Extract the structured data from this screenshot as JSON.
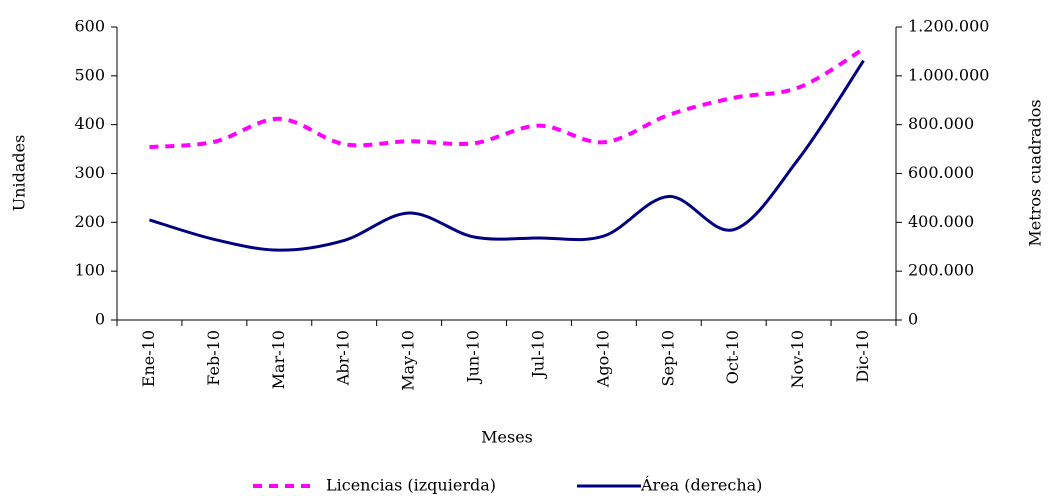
{
  "chart_data": {
    "type": "line",
    "x_label": "Meses",
    "y_label": "Unidades",
    "y2_label": "Metros cuadrados",
    "categories": [
      "Ene-10",
      "Feb-10",
      "Mar-10",
      "Abr-10",
      "May-10",
      "Jun-10",
      "Jul-10",
      "Ago-10",
      "Sep-10",
      "Oct-10",
      "Nov-10",
      "Dic-10"
    ],
    "series": [
      {
        "name": "Licencias (izquierda)",
        "color": "#ff00ff",
        "dashed": true,
        "values": [
          354,
          365,
          412,
          360,
          366,
          362,
          398,
          364,
          420,
          455,
          476,
          555
        ]
      },
      {
        "name": "Área (derecha)",
        "color": "#000080",
        "axis": "y2",
        "values": [
          410000,
          330000,
          286000,
          326000,
          438000,
          340000,
          336000,
          344000,
          506000,
          370000,
          660000,
          1062000
        ]
      }
    ],
    "ylim": [
      0,
      600
    ],
    "yticks": [
      0,
      100,
      200,
      300,
      400,
      500,
      600
    ],
    "y2lim": [
      0,
      1200000
    ],
    "y2ticks": [
      0,
      {
        "value": 200000,
        "label": "200.000"
      },
      {
        "value": 400000,
        "label": "400.000"
      },
      {
        "value": 600000,
        "label": "600.000"
      },
      {
        "value": 800000,
        "label": "800.000"
      },
      {
        "value": 1000000,
        "label": "1.000.000"
      },
      {
        "value": 1200000,
        "label": "1.200.000"
      }
    ],
    "legend": "bottom"
  }
}
